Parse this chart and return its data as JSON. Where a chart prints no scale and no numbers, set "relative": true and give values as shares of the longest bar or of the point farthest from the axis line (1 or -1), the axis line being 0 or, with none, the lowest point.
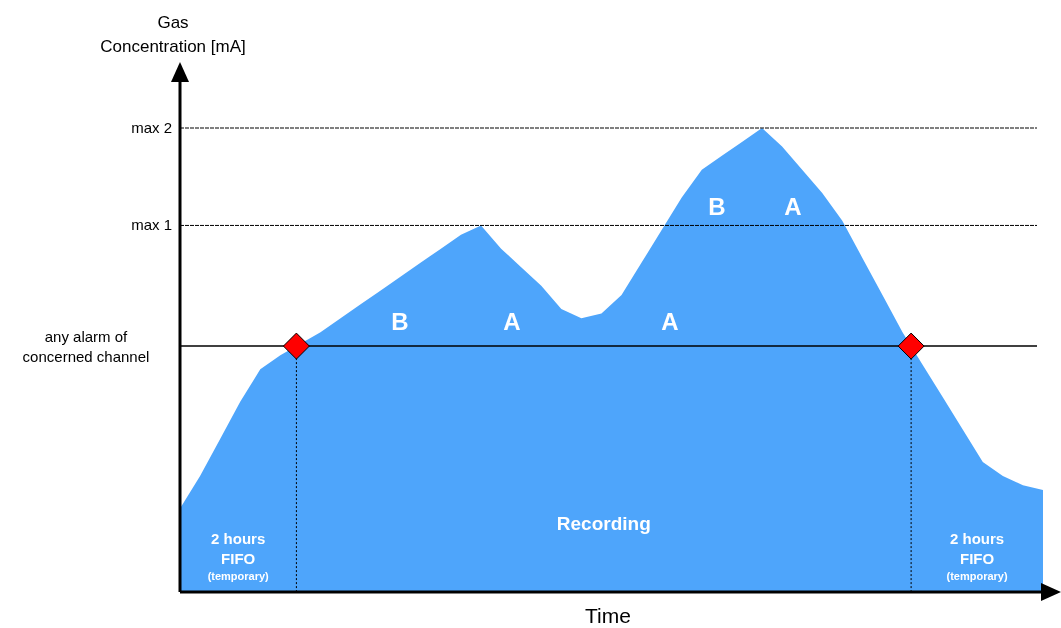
{
  "chart_data": {
    "type": "area",
    "relative": true,
    "xlabel": "Time",
    "ylabel": "Gas\nConcentration [mA]",
    "categories": [
      null,
      null,
      null,
      null,
      null,
      null,
      null,
      null,
      null,
      null,
      null,
      null,
      null,
      null,
      null,
      null,
      null,
      null,
      null,
      null,
      null,
      null,
      null,
      null,
      null,
      null,
      null,
      null,
      null,
      null,
      null,
      null,
      null,
      null,
      null,
      null,
      null,
      null,
      null,
      null,
      null,
      null,
      null,
      null
    ],
    "series": [
      {
        "color": "#4ea5fb",
        "values": [
          0.18,
          0.25,
          0.33,
          0.41,
          0.48,
          0.51,
          null,
          0.56,
          0.59,
          0.62,
          0.65,
          0.68,
          0.71,
          0.74,
          0.77,
          0.79,
          0.74,
          0.7,
          0.66,
          0.61,
          0.59,
          0.6,
          0.64,
          0.71,
          0.78,
          0.85,
          0.91,
          0.94,
          0.97,
          1,
          0.96,
          0.91,
          0.86,
          0.8,
          0.72,
          0.64,
          0.56,
          0.49,
          0.42,
          0.35,
          0.28,
          0.25,
          0.23,
          0.22
        ]
      }
    ],
    "ref_lines": [
      {
        "axis": "y",
        "value": 1,
        "label": "max 2",
        "line_style": "dashed"
      },
      {
        "axis": "y",
        "value": 0.79,
        "label": "max 1",
        "line_style": "dashed"
      },
      {
        "axis": "y",
        "value": 0.53,
        "label": "any alarm of\nconcerned channel",
        "line_style": "solid"
      }
    ],
    "annotations": [
      "B",
      "A",
      "A",
      "B",
      "A",
      "2 hours\nFIFO\n(temporary)",
      "Recording",
      "2 hours\nFIFO\n(temporary)"
    ]
  }
}
